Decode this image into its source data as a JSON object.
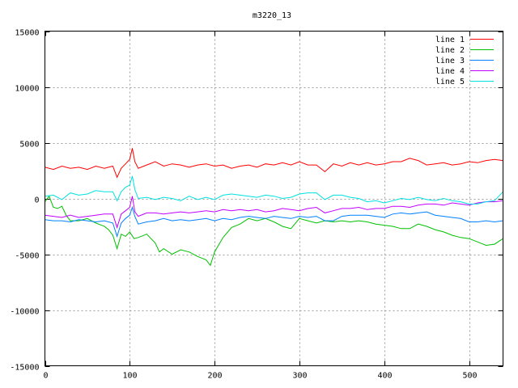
{
  "chart_data": {
    "type": "line",
    "title": "m3220_13",
    "xlabel": "",
    "ylabel": "",
    "xlim": [
      0,
      540
    ],
    "ylim": [
      -15000,
      15000
    ],
    "xticks": [
      0,
      100,
      200,
      300,
      400,
      500
    ],
    "yticks": [
      -15000,
      -10000,
      -5000,
      0,
      5000,
      10000,
      15000
    ],
    "grid": true,
    "legend_position": "top-right",
    "series": [
      {
        "name": "line 1",
        "color": "#ff0000",
        "x": [
          0,
          10,
          20,
          30,
          40,
          50,
          60,
          70,
          80,
          85,
          90,
          95,
          100,
          103,
          106,
          110,
          120,
          130,
          140,
          150,
          160,
          170,
          180,
          190,
          200,
          210,
          220,
          230,
          240,
          250,
          260,
          270,
          280,
          290,
          300,
          310,
          320,
          330,
          340,
          350,
          360,
          370,
          380,
          390,
          400,
          410,
          420,
          430,
          440,
          450,
          460,
          470,
          480,
          490,
          500,
          510,
          520,
          530,
          540
        ],
        "values": [
          2800,
          2600,
          2900,
          2700,
          2800,
          2600,
          2900,
          2700,
          2900,
          1900,
          2700,
          3100,
          3500,
          4500,
          3300,
          2700,
          3000,
          3300,
          2900,
          3100,
          3000,
          2800,
          3000,
          3100,
          2900,
          3000,
          2700,
          2900,
          3000,
          2800,
          3100,
          3000,
          3200,
          3000,
          3300,
          3000,
          3000,
          2400,
          3100,
          2900,
          3200,
          3000,
          3200,
          3000,
          3100,
          3300,
          3300,
          3600,
          3400,
          3000,
          3100,
          3200,
          3000,
          3100,
          3300,
          3200,
          3400,
          3500,
          3400
        ]
      },
      {
        "name": "line 2",
        "color": "#00c000",
        "x": [
          0,
          5,
          10,
          15,
          20,
          25,
          30,
          40,
          50,
          60,
          70,
          75,
          80,
          85,
          90,
          95,
          100,
          105,
          110,
          120,
          130,
          135,
          140,
          150,
          160,
          170,
          180,
          190,
          195,
          200,
          210,
          220,
          230,
          240,
          250,
          260,
          270,
          280,
          290,
          300,
          310,
          320,
          330,
          340,
          350,
          360,
          370,
          380,
          390,
          400,
          410,
          420,
          430,
          440,
          450,
          460,
          470,
          480,
          490,
          500,
          510,
          520,
          530,
          540
        ],
        "values": [
          -300,
          200,
          -800,
          -900,
          -700,
          -1500,
          -2000,
          -2000,
          -1800,
          -2200,
          -2500,
          -2800,
          -3300,
          -4500,
          -3200,
          -3400,
          -3000,
          -3600,
          -3500,
          -3200,
          -4000,
          -4800,
          -4500,
          -5000,
          -4600,
          -4800,
          -5200,
          -5500,
          -6000,
          -4800,
          -3500,
          -2600,
          -2300,
          -1800,
          -2000,
          -1800,
          -2100,
          -2500,
          -2700,
          -1800,
          -2000,
          -2200,
          -2000,
          -2100,
          -2000,
          -2100,
          -2000,
          -2100,
          -2300,
          -2400,
          -2500,
          -2700,
          -2700,
          -2300,
          -2500,
          -2800,
          -3000,
          -3300,
          -3500,
          -3600,
          -3900,
          -4200,
          -4100,
          -3600
        ]
      },
      {
        "name": "line 3",
        "color": "#0080ff",
        "x": [
          0,
          10,
          20,
          30,
          40,
          50,
          60,
          70,
          80,
          85,
          90,
          95,
          100,
          103,
          106,
          110,
          120,
          130,
          140,
          150,
          160,
          170,
          180,
          190,
          200,
          210,
          220,
          230,
          240,
          250,
          260,
          270,
          280,
          290,
          300,
          310,
          320,
          330,
          340,
          350,
          360,
          370,
          380,
          390,
          400,
          410,
          420,
          430,
          440,
          450,
          460,
          470,
          480,
          490,
          500,
          510,
          520,
          530,
          540
        ],
        "values": [
          -1900,
          -2000,
          -2000,
          -2100,
          -1900,
          -2000,
          -2100,
          -2000,
          -2200,
          -3400,
          -2200,
          -1800,
          -1500,
          -800,
          -1600,
          -2300,
          -2100,
          -2000,
          -1800,
          -2000,
          -1900,
          -2000,
          -1900,
          -1800,
          -2000,
          -1800,
          -1900,
          -1700,
          -1600,
          -1700,
          -1800,
          -1600,
          -1700,
          -1800,
          -1600,
          -1700,
          -1600,
          -2000,
          -2000,
          -1600,
          -1500,
          -1500,
          -1500,
          -1600,
          -1700,
          -1400,
          -1300,
          -1400,
          -1300,
          -1200,
          -1500,
          -1600,
          -1700,
          -1800,
          -2100,
          -2100,
          -2000,
          -2100,
          -2000
        ]
      },
      {
        "name": "line 4",
        "color": "#c000ff",
        "x": [
          0,
          10,
          20,
          30,
          40,
          50,
          60,
          70,
          80,
          85,
          90,
          95,
          100,
          103,
          106,
          110,
          120,
          130,
          140,
          150,
          160,
          170,
          180,
          190,
          200,
          210,
          220,
          230,
          240,
          250,
          260,
          270,
          280,
          290,
          300,
          310,
          320,
          330,
          340,
          350,
          360,
          370,
          380,
          390,
          400,
          410,
          420,
          430,
          440,
          450,
          460,
          470,
          480,
          490,
          500,
          510,
          520,
          530,
          540
        ],
        "values": [
          -1500,
          -1600,
          -1700,
          -1500,
          -1700,
          -1600,
          -1500,
          -1400,
          -1400,
          -2600,
          -1400,
          -1100,
          -800,
          200,
          -1200,
          -1600,
          -1300,
          -1300,
          -1400,
          -1300,
          -1200,
          -1300,
          -1200,
          -1100,
          -1200,
          -1000,
          -1100,
          -1000,
          -1100,
          -1000,
          -1200,
          -1100,
          -900,
          -1000,
          -1100,
          -900,
          -800,
          -1300,
          -1100,
          -900,
          -900,
          -800,
          -1000,
          -900,
          -900,
          -700,
          -700,
          -800,
          -600,
          -500,
          -500,
          -600,
          -400,
          -500,
          -600,
          -400,
          -300,
          -300,
          -200
        ]
      },
      {
        "name": "line 5",
        "color": "#00e0e0",
        "x": [
          0,
          10,
          20,
          30,
          40,
          50,
          60,
          70,
          80,
          85,
          90,
          95,
          100,
          103,
          106,
          110,
          120,
          130,
          140,
          150,
          160,
          170,
          180,
          190,
          200,
          210,
          220,
          230,
          240,
          250,
          260,
          270,
          280,
          290,
          300,
          310,
          320,
          330,
          340,
          350,
          360,
          370,
          380,
          390,
          400,
          410,
          420,
          430,
          440,
          450,
          460,
          470,
          480,
          490,
          500,
          510,
          520,
          530,
          540
        ],
        "values": [
          200,
          300,
          -100,
          500,
          300,
          400,
          700,
          600,
          600,
          -200,
          600,
          1000,
          1200,
          2000,
          800,
          0,
          100,
          -100,
          100,
          0,
          -200,
          200,
          -100,
          100,
          -100,
          300,
          400,
          300,
          200,
          100,
          300,
          200,
          0,
          100,
          400,
          500,
          500,
          -100,
          300,
          300,
          100,
          0,
          -300,
          -200,
          -400,
          -200,
          0,
          -100,
          100,
          -100,
          -200,
          0,
          -200,
          -300,
          -500,
          -500,
          -300,
          -200,
          600
        ]
      }
    ]
  }
}
